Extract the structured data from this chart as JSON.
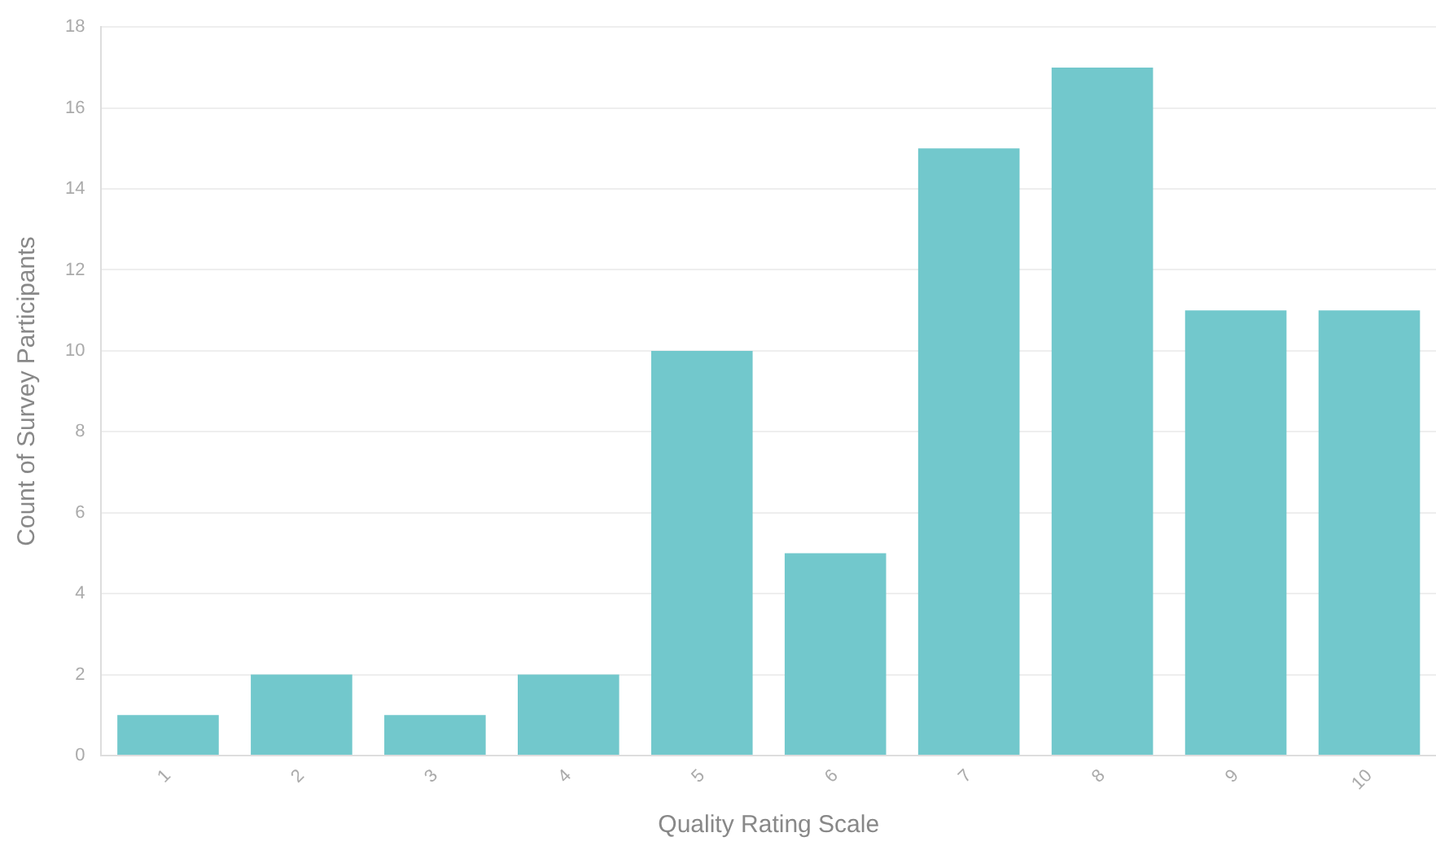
{
  "chart_data": {
    "type": "bar",
    "xlabel": "Quality Rating Scale",
    "ylabel": "Count of Survey Participants",
    "categories": [
      "1",
      "2",
      "3",
      "4",
      "5",
      "6",
      "7",
      "8",
      "9",
      "10"
    ],
    "values": [
      1,
      2,
      1,
      2,
      10,
      5,
      15,
      17,
      11,
      11
    ],
    "color": "#72c8cc",
    "ylim": [
      0,
      18
    ],
    "yticks": [
      0,
      2,
      4,
      6,
      8,
      10,
      12,
      14,
      16,
      18
    ],
    "grid": "y"
  }
}
